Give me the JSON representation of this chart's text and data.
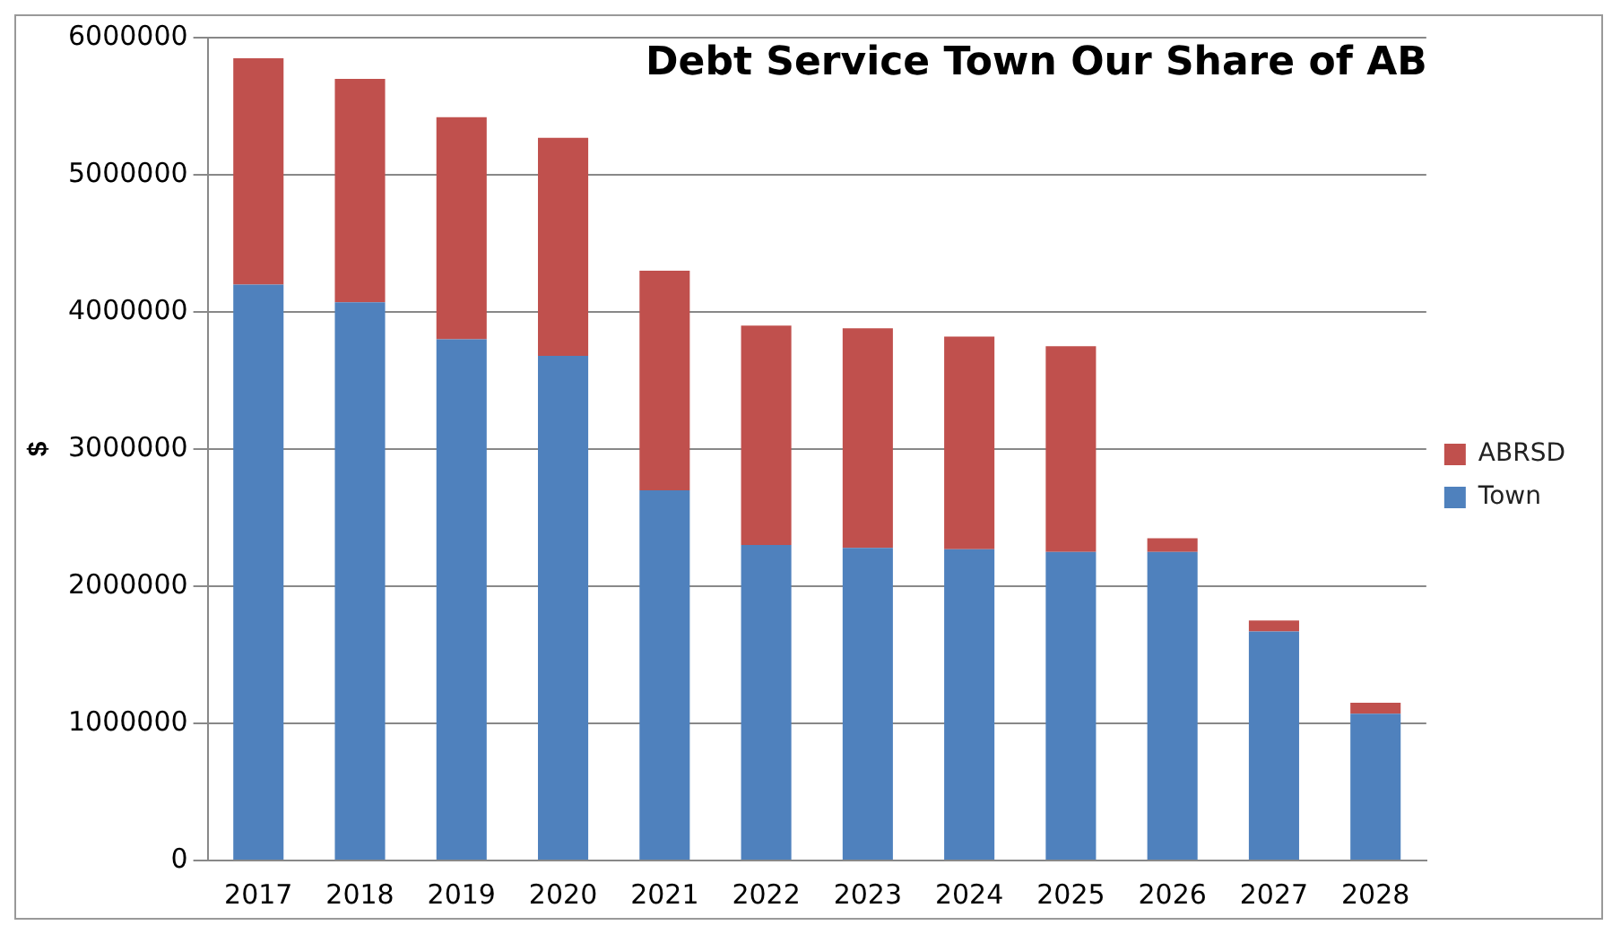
{
  "chart_data": {
    "type": "bar",
    "title": "Debt Service Town Our Share of AB",
    "ylabel": "$",
    "categories": [
      "2017",
      "2018",
      "2019",
      "2020",
      "2021",
      "2022",
      "2023",
      "2024",
      "2025",
      "2026",
      "2027",
      "2028"
    ],
    "stacked": true,
    "series": [
      {
        "name": "Town",
        "color": "#4f81bd",
        "values": [
          4200000,
          4070000,
          3800000,
          3680000,
          2700000,
          2300000,
          2280000,
          2270000,
          2250000,
          2250000,
          1670000,
          1070000
        ]
      },
      {
        "name": "ABRSD",
        "color": "#c0504d",
        "values": [
          1650000,
          1630000,
          1620000,
          1590000,
          1600000,
          1600000,
          1600000,
          1550000,
          1500000,
          100000,
          80000,
          80000
        ]
      }
    ],
    "ylim": [
      0,
      6000000
    ],
    "yticks": [
      0,
      1000000,
      2000000,
      3000000,
      4000000,
      5000000,
      6000000
    ],
    "grid": "y",
    "legend": "right"
  }
}
